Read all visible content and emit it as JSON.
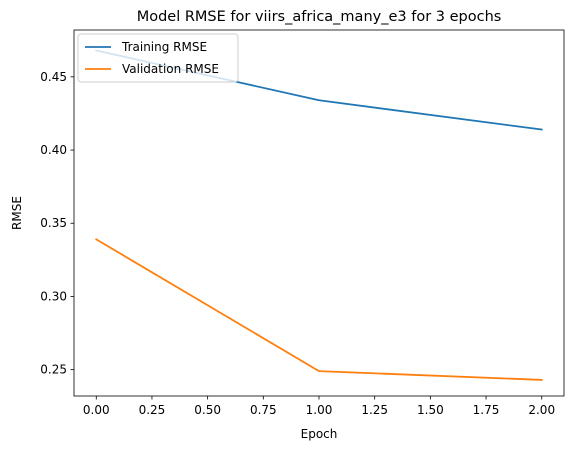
{
  "chart_data": {
    "type": "line",
    "title": "Model RMSE for viirs_africa_many_e3 for 3 epochs",
    "xlabel": "Epoch",
    "ylabel": "RMSE",
    "xlim": [
      -0.1,
      2.1
    ],
    "ylim": [
      0.232,
      0.482
    ],
    "xticks": [
      0.0,
      0.25,
      0.5,
      0.75,
      1.0,
      1.25,
      1.5,
      1.75,
      2.0
    ],
    "xtick_labels": [
      "0.00",
      "0.25",
      "0.50",
      "0.75",
      "1.00",
      "1.25",
      "1.50",
      "1.75",
      "2.00"
    ],
    "yticks": [
      0.25,
      0.3,
      0.35,
      0.4,
      0.45
    ],
    "ytick_labels": [
      "0.25",
      "0.30",
      "0.35",
      "0.40",
      "0.45"
    ],
    "grid": false,
    "legend_position": "upper-left",
    "series": [
      {
        "name": "Training RMSE",
        "color": "#1f77b4",
        "x": [
          0,
          1,
          2
        ],
        "y": [
          0.468,
          0.434,
          0.414
        ]
      },
      {
        "name": "Validation RMSE",
        "color": "#ff7f0e",
        "x": [
          0,
          1,
          2
        ],
        "y": [
          0.339,
          0.249,
          0.243
        ]
      }
    ]
  }
}
